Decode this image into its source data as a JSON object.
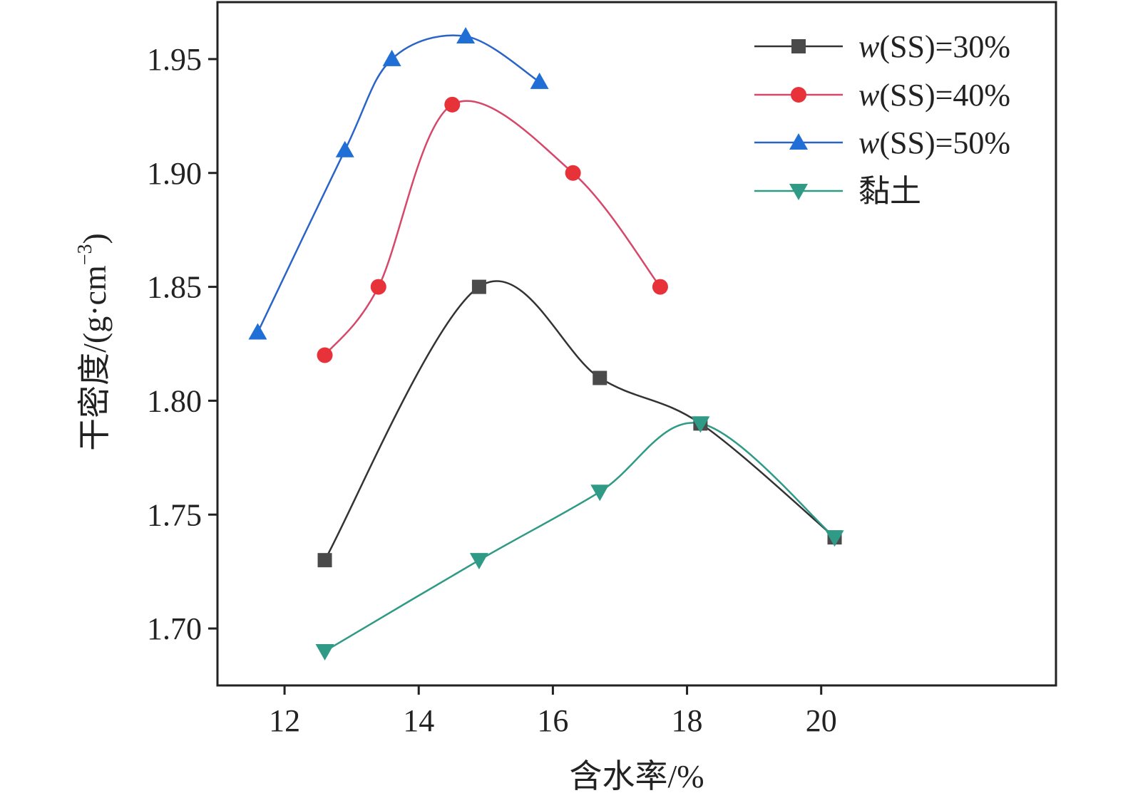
{
  "chart_data": {
    "type": "line",
    "xlabel": "含水率/%",
    "ylabel": "干密度/(g·cm",
    "ylabel_sup": "−3",
    "ylabel_close": ")",
    "xlim": [
      11,
      23.5
    ],
    "ylim": [
      1.675,
      1.975
    ],
    "xticks": [
      12,
      14,
      16,
      18,
      20
    ],
    "yticks": [
      1.7,
      1.75,
      1.8,
      1.85,
      1.9,
      1.95
    ],
    "ytick_labels": [
      "1.70",
      "1.75",
      "1.80",
      "1.85",
      "1.90",
      "1.95"
    ],
    "grid": false,
    "legend_position": "top-right",
    "series": [
      {
        "name": "w(SS)=30%",
        "legend_var": "w",
        "legend_rest": "(SS)=30%",
        "marker": "square",
        "line_color": "#333333",
        "marker_color": "#4a4a4a",
        "x": [
          12.6,
          14.9,
          16.7,
          18.2,
          20.2
        ],
        "y": [
          1.73,
          1.85,
          1.81,
          1.79,
          1.74
        ]
      },
      {
        "name": "w(SS)=40%",
        "legend_var": "w",
        "legend_rest": "(SS)=40%",
        "marker": "circle",
        "line_color": "#d6476a",
        "marker_color": "#e8323a",
        "x": [
          12.6,
          13.4,
          14.5,
          16.3,
          17.6
        ],
        "y": [
          1.82,
          1.85,
          1.93,
          1.9,
          1.85
        ]
      },
      {
        "name": "w(SS)=50%",
        "legend_var": "w",
        "legend_rest": "(SS)=50%",
        "marker": "triangle-up",
        "line_color": "#2a64c8",
        "marker_color": "#1f6fd6",
        "x": [
          11.6,
          12.9,
          13.6,
          14.7,
          15.8
        ],
        "y": [
          1.83,
          1.91,
          1.95,
          1.96,
          1.94
        ]
      },
      {
        "name": "黏土",
        "legend_var": "",
        "legend_rest": "黏土",
        "marker": "triangle-down",
        "line_color": "#2f9a86",
        "marker_color": "#2f9a86",
        "x": [
          12.6,
          14.9,
          16.7,
          18.2,
          20.2
        ],
        "y": [
          1.69,
          1.73,
          1.76,
          1.79,
          1.74
        ]
      }
    ]
  }
}
